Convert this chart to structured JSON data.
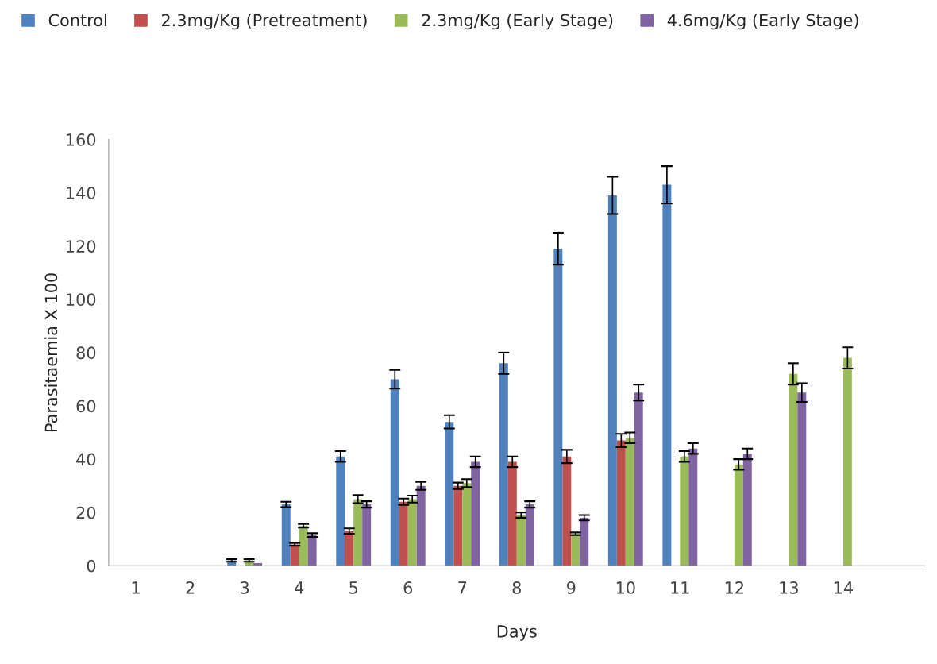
{
  "chart_data": {
    "type": "bar",
    "xlabel": "Days",
    "ylabel": "Parasitaemia X 100",
    "categories": [
      "1",
      "2",
      "3",
      "4",
      "5",
      "6",
      "7",
      "8",
      "9",
      "10",
      "11",
      "12",
      "13",
      "14",
      null
    ],
    "series": [
      {
        "name": "Control",
        "color": "#4f81bd",
        "values": [
          null,
          null,
          2,
          23,
          41,
          70,
          54,
          76,
          119,
          139,
          143,
          null,
          null,
          null,
          null
        ],
        "errors": [
          null,
          null,
          0.5,
          1,
          2,
          3.5,
          2.5,
          4,
          6,
          7,
          7,
          null,
          null,
          null,
          null
        ]
      },
      {
        "name": "2.3mg/Kg (Pretreatment)",
        "color": "#c0504d",
        "values": [
          null,
          null,
          null,
          8,
          13,
          24,
          30,
          39,
          41,
          47,
          null,
          null,
          null,
          null,
          null
        ],
        "errors": [
          null,
          null,
          null,
          0.5,
          1,
          1.2,
          1.2,
          2,
          2.5,
          2.5,
          null,
          null,
          null,
          null,
          null
        ]
      },
      {
        "name": "2.3mg/Kg (Early Stage)",
        "color": "#9bbb59",
        "values": [
          null,
          null,
          2,
          15,
          25,
          25,
          31,
          19,
          12,
          48,
          41,
          38,
          72,
          78,
          null
        ],
        "errors": [
          null,
          null,
          0.5,
          0.7,
          1.5,
          1.3,
          1.5,
          1,
          0.5,
          2,
          2,
          2,
          4,
          4,
          null
        ]
      },
      {
        "name": "4.6mg/Kg (Early Stage)",
        "color": "#8064a2",
        "values": [
          null,
          null,
          1,
          11.5,
          23,
          30,
          39,
          23,
          18,
          65,
          44,
          42,
          65,
          null,
          null
        ],
        "errors": [
          null,
          null,
          null,
          0.7,
          1.2,
          1.5,
          2,
          1.2,
          1,
          3,
          2,
          2,
          3.5,
          null,
          null
        ]
      }
    ],
    "ylim": [
      0,
      160
    ],
    "yticks": [
      0,
      20,
      40,
      60,
      80,
      100,
      120,
      140,
      160
    ],
    "grid": false,
    "legend": "top"
  }
}
